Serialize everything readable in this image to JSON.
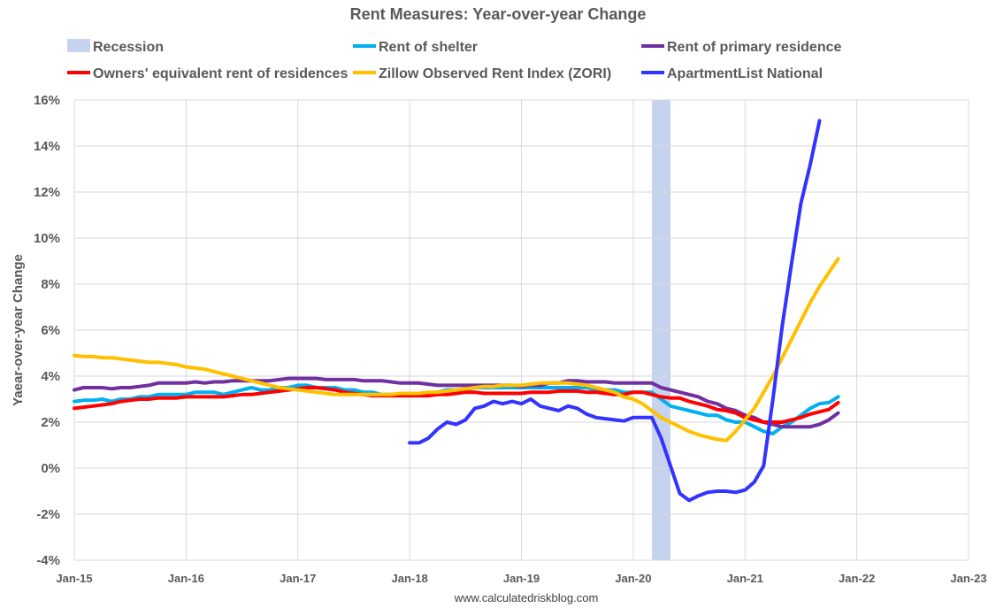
{
  "chart_data": {
    "type": "line",
    "title": "Rent Measures: Year-over-year Change",
    "ylabel": "Yaear-over-year Change",
    "xlabel": "",
    "source": "www.calculatedriskblog.com",
    "ylim": [
      -4,
      16
    ],
    "yticks": [
      -4,
      -2,
      0,
      2,
      4,
      6,
      8,
      10,
      12,
      14,
      16
    ],
    "ytick_labels": [
      "-4%",
      "-2%",
      "0%",
      "2%",
      "4%",
      "6%",
      "8%",
      "10%",
      "12%",
      "14%",
      "16%"
    ],
    "xlim": [
      "2015-01",
      "2023-01"
    ],
    "xticks": [
      "2015-01",
      "2016-01",
      "2017-01",
      "2018-01",
      "2019-01",
      "2020-01",
      "2021-01",
      "2022-01",
      "2023-01"
    ],
    "xtick_labels": [
      "Jan-15",
      "Jan-16",
      "Jan-17",
      "Jan-18",
      "Jan-19",
      "Jan-20",
      "Jan-21",
      "Jan-22",
      "Jan-23"
    ],
    "grid": true,
    "legend_position": "top",
    "recession": {
      "name": "Recession",
      "start": "2020-03",
      "end": "2020-04",
      "color": "#c5d3ee"
    },
    "legend_order": [
      "Recession",
      "Rent of shelter",
      "Rent of primary residence",
      "Owners' equivalent rent of residences",
      "Zillow Observed Rent Index (ZORI)",
      "ApartmentList National"
    ],
    "series": [
      {
        "name": "Rent of shelter",
        "color": "#00b0f0",
        "start": "2015-01",
        "values": [
          2.9,
          2.95,
          2.95,
          3.0,
          2.9,
          3.0,
          3.0,
          3.1,
          3.1,
          3.2,
          3.2,
          3.2,
          3.2,
          3.3,
          3.3,
          3.3,
          3.2,
          3.3,
          3.4,
          3.5,
          3.4,
          3.4,
          3.5,
          3.5,
          3.6,
          3.6,
          3.5,
          3.5,
          3.5,
          3.4,
          3.4,
          3.3,
          3.3,
          3.2,
          3.2,
          3.2,
          3.2,
          3.2,
          3.2,
          3.3,
          3.4,
          3.4,
          3.4,
          3.5,
          3.5,
          3.5,
          3.5,
          3.5,
          3.5,
          3.5,
          3.5,
          3.5,
          3.5,
          3.5,
          3.5,
          3.5,
          3.4,
          3.4,
          3.4,
          3.3,
          3.3,
          3.3,
          3.3,
          3.0,
          2.7,
          2.6,
          2.5,
          2.4,
          2.3,
          2.3,
          2.1,
          2.0,
          2.0,
          1.8,
          1.6,
          1.5,
          1.8,
          2.0,
          2.3,
          2.6,
          2.8,
          2.85,
          3.1
        ]
      },
      {
        "name": "Rent of primary residence",
        "color": "#7030a0",
        "start": "2015-01",
        "values": [
          3.4,
          3.5,
          3.5,
          3.5,
          3.45,
          3.5,
          3.5,
          3.55,
          3.6,
          3.7,
          3.7,
          3.7,
          3.7,
          3.75,
          3.7,
          3.75,
          3.75,
          3.8,
          3.8,
          3.8,
          3.8,
          3.8,
          3.85,
          3.9,
          3.9,
          3.9,
          3.9,
          3.85,
          3.85,
          3.85,
          3.85,
          3.8,
          3.8,
          3.8,
          3.75,
          3.7,
          3.7,
          3.7,
          3.65,
          3.6,
          3.6,
          3.6,
          3.6,
          3.6,
          3.6,
          3.6,
          3.6,
          3.6,
          3.55,
          3.6,
          3.6,
          3.7,
          3.7,
          3.8,
          3.8,
          3.75,
          3.75,
          3.75,
          3.7,
          3.7,
          3.7,
          3.7,
          3.7,
          3.5,
          3.4,
          3.3,
          3.2,
          3.1,
          2.9,
          2.8,
          2.6,
          2.5,
          2.3,
          2.2,
          2.0,
          1.9,
          1.8,
          1.8,
          1.8,
          1.8,
          1.9,
          2.1,
          2.4
        ]
      },
      {
        "name": "Owners' equivalent rent of residences",
        "color": "#ff0000",
        "start": "2015-01",
        "values": [
          2.6,
          2.65,
          2.7,
          2.75,
          2.8,
          2.9,
          2.95,
          3.0,
          3.0,
          3.05,
          3.05,
          3.05,
          3.1,
          3.1,
          3.1,
          3.1,
          3.1,
          3.15,
          3.2,
          3.2,
          3.25,
          3.3,
          3.35,
          3.4,
          3.45,
          3.5,
          3.5,
          3.45,
          3.4,
          3.3,
          3.25,
          3.2,
          3.15,
          3.15,
          3.15,
          3.15,
          3.15,
          3.15,
          3.15,
          3.2,
          3.2,
          3.25,
          3.3,
          3.3,
          3.25,
          3.25,
          3.25,
          3.25,
          3.25,
          3.3,
          3.3,
          3.3,
          3.35,
          3.35,
          3.35,
          3.3,
          3.3,
          3.25,
          3.2,
          3.2,
          3.3,
          3.3,
          3.2,
          3.1,
          3.05,
          3.05,
          2.9,
          2.8,
          2.7,
          2.55,
          2.5,
          2.4,
          2.2,
          2.1,
          2.0,
          2.0,
          2.0,
          2.1,
          2.2,
          2.35,
          2.45,
          2.55,
          2.85
        ]
      },
      {
        "name": "Zillow Observed Rent Index (ZORI)",
        "color": "#ffc000",
        "start": "2015-01",
        "values": [
          4.9,
          4.85,
          4.85,
          4.8,
          4.8,
          4.75,
          4.7,
          4.65,
          4.6,
          4.6,
          4.55,
          4.5,
          4.4,
          4.35,
          4.3,
          4.2,
          4.1,
          4.0,
          3.9,
          3.8,
          3.7,
          3.6,
          3.5,
          3.45,
          3.4,
          3.35,
          3.3,
          3.25,
          3.2,
          3.2,
          3.2,
          3.2,
          3.2,
          3.2,
          3.2,
          3.25,
          3.25,
          3.25,
          3.3,
          3.3,
          3.35,
          3.4,
          3.45,
          3.5,
          3.55,
          3.55,
          3.6,
          3.6,
          3.6,
          3.65,
          3.7,
          3.7,
          3.7,
          3.7,
          3.65,
          3.6,
          3.5,
          3.4,
          3.3,
          3.1,
          3.0,
          2.8,
          2.5,
          2.2,
          2.0,
          1.8,
          1.6,
          1.45,
          1.35,
          1.25,
          1.2,
          1.6,
          2.1,
          2.6,
          3.3,
          4.0,
          4.8,
          5.6,
          6.4,
          7.2,
          7.9,
          8.5,
          9.1
        ]
      },
      {
        "name": "ApartmentList National",
        "color": "#3333ff",
        "start": "2018-01",
        "values": [
          1.1,
          1.1,
          1.3,
          1.7,
          2.0,
          1.9,
          2.1,
          2.6,
          2.7,
          2.9,
          2.8,
          2.9,
          2.8,
          3.0,
          2.7,
          2.6,
          2.5,
          2.7,
          2.6,
          2.35,
          2.2,
          2.15,
          2.1,
          2.05,
          2.2,
          2.2,
          2.2,
          1.3,
          0.1,
          -1.1,
          -1.4,
          -1.2,
          -1.05,
          -1.0,
          -1.0,
          -1.05,
          -0.95,
          -0.6,
          0.1,
          3.0,
          6.2,
          8.9,
          11.5,
          13.2,
          15.1
        ]
      }
    ]
  }
}
